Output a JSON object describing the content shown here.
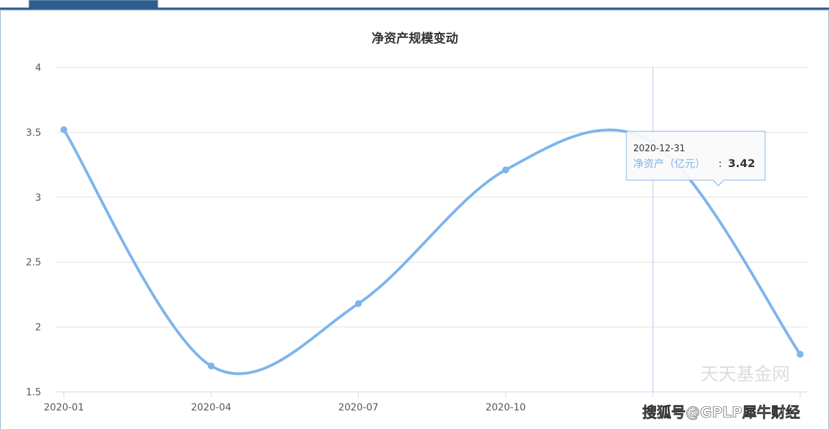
{
  "chart_data": {
    "type": "line",
    "title": "净资产规模变动",
    "categories": [
      "2020-01",
      "2020-04",
      "2020-07",
      "2020-10",
      null,
      null
    ],
    "series": [
      {
        "name": "净资产（亿元）",
        "color": "#7cb5ec",
        "values": [
          3.52,
          1.7,
          2.18,
          3.21,
          3.42,
          1.79
        ]
      }
    ],
    "ylim": [
      1.5,
      4
    ],
    "yticks": [
      1.5,
      2,
      2.5,
      3,
      3.5,
      4
    ],
    "grid": true,
    "tooltip": {
      "date": "2020-12-31",
      "label": "净资产（亿元）",
      "value": 3.42
    },
    "watermarks": [
      "天天基金网",
      "搜狐号@GPLP犀牛财经"
    ]
  }
}
